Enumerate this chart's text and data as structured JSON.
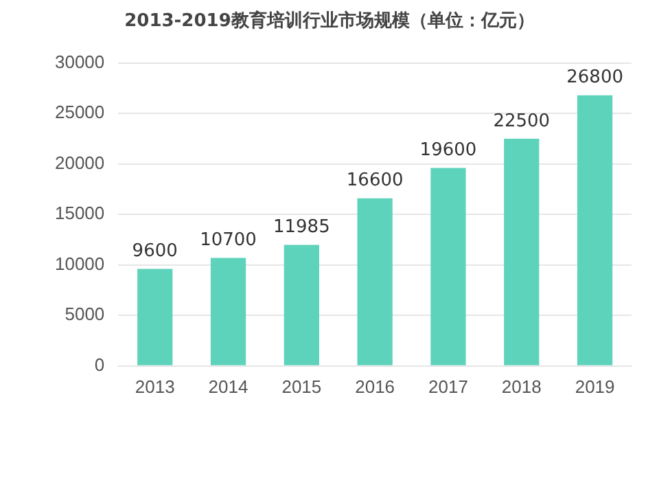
{
  "chart_data": {
    "type": "bar",
    "title": "2013-2019教育培训行业市场规模（单位：亿元）",
    "categories": [
      "2013",
      "2014",
      "2015",
      "2016",
      "2017",
      "2018",
      "2019"
    ],
    "values": [
      9600,
      10700,
      11985,
      16600,
      19600,
      22500,
      26800
    ],
    "color": "#5ed3bc",
    "ylim": [
      0,
      30000
    ],
    "yticks": [
      0,
      5000,
      10000,
      15000,
      20000,
      25000,
      30000
    ],
    "grid": "y",
    "data_labels": true,
    "legend": false
  }
}
